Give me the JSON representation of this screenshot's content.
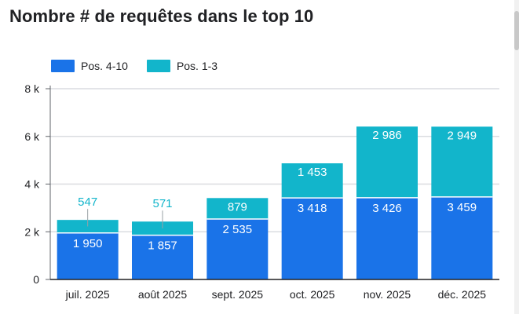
{
  "title": "Nombre # de requêtes dans le top 10",
  "colors": {
    "pos410": "#1a73e8",
    "pos13": "#12b5cb",
    "label_outside": "#12b5cb"
  },
  "chart_data": {
    "type": "bar",
    "stacked": true,
    "categories": [
      "juil. 2025",
      "août 2025",
      "sept. 2025",
      "oct. 2025",
      "nov. 2025",
      "déc. 2025"
    ],
    "series": [
      {
        "name": "Pos. 4-10",
        "values": [
          1950,
          1857,
          2535,
          3418,
          3426,
          3459
        ],
        "labels": [
          "1 950",
          "1 857",
          "2 535",
          "3 418",
          "3 426",
          "3 459"
        ]
      },
      {
        "name": "Pos. 1-3",
        "values": [
          547,
          571,
          879,
          1453,
          2986,
          2949
        ],
        "labels": [
          "547",
          "571",
          "879",
          "1 453",
          "2 986",
          "2 949"
        ]
      }
    ],
    "yticks": [
      0,
      2000,
      4000,
      6000,
      8000
    ],
    "ytick_labels": [
      "0",
      "2 k",
      "4 k",
      "6 k",
      "8 k"
    ],
    "ylim": [
      0,
      8000
    ],
    "grid": true,
    "legend": "top-left"
  }
}
